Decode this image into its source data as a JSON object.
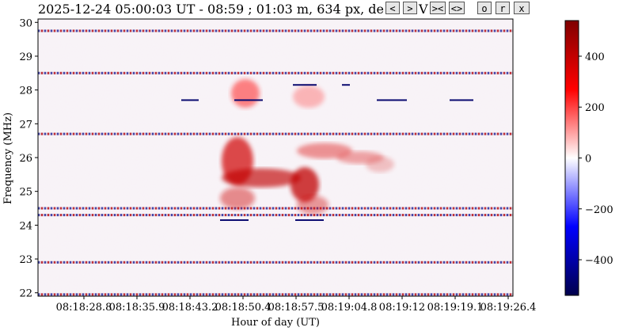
{
  "header": {
    "title": "2025-12-24 05:00:03 UT - 08:59 ; 01:03 m, 634 px, de",
    "toolbar_buttons": [
      {
        "label": "<",
        "name": "prev-button"
      },
      {
        "label": ">",
        "name": "next-button"
      },
      {
        "label": "V",
        "name": "v-label"
      },
      {
        "label": "><",
        "name": "zoom-in-button"
      },
      {
        "label": "<>",
        "name": "zoom-out-button"
      },
      {
        "label": "o",
        "name": "o-button"
      },
      {
        "label": "r",
        "name": "r-button"
      },
      {
        "label": "x",
        "name": "close-button"
      }
    ]
  },
  "chart_data": {
    "type": "heatmap",
    "title": "",
    "xlabel": "Hour of day (UT)",
    "ylabel": "Frequency (MHz)",
    "x_tick_labels": [
      "08:18:28.8",
      "08:18:35.9",
      "08:18:43.2",
      "08:18:50.4",
      "08:18:57.5",
      "08:19:04.8",
      "08:19:12",
      "08:19:19.1",
      "08:19:26.4"
    ],
    "y_tick_labels": [
      "22",
      "23",
      "24",
      "25",
      "26",
      "27",
      "28",
      "29",
      "30"
    ],
    "y_ticks": [
      22,
      23,
      24,
      25,
      26,
      27,
      28,
      29,
      30
    ],
    "ylim": [
      21.9,
      30.1
    ],
    "colorbar": {
      "colormap": "seismic",
      "range": [
        -540,
        540
      ],
      "tick_values": [
        400,
        200,
        0,
        -200,
        -400
      ],
      "tick_labels": [
        "400",
        "200",
        "0",
        "−200",
        "−400"
      ]
    },
    "horizontal_bands_mhz": [
      29.75,
      28.5,
      26.7,
      24.5,
      24.3,
      22.9,
      21.95
    ],
    "burst_regions": [
      {
        "f_low": 24.0,
        "f_high": 28.6,
        "intensity": 520
      },
      {
        "f_low": 24.8,
        "f_high": 26.6,
        "intensity": 480
      }
    ]
  }
}
